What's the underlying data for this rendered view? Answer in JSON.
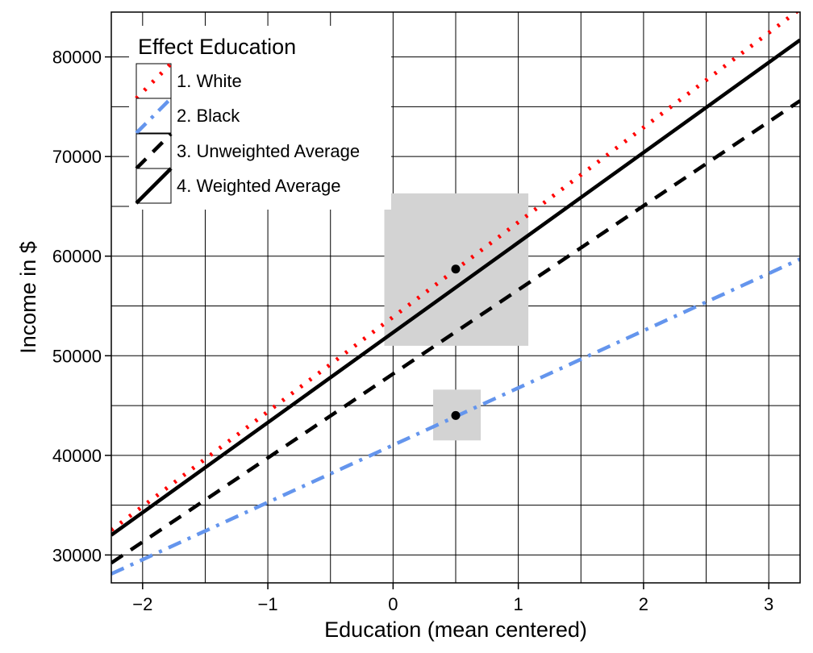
{
  "chart_data": {
    "type": "line",
    "xlabel": "Education (mean centered)",
    "ylabel": "Income in $",
    "xlim": [
      -2.25,
      3.25
    ],
    "ylim": [
      27200,
      84500
    ],
    "x_ticks": [
      -2,
      -1,
      0,
      1,
      2,
      3
    ],
    "x_tick_labels": [
      "−2",
      "−1",
      "0",
      "1",
      "2",
      "3"
    ],
    "y_ticks": [
      30000,
      40000,
      50000,
      60000,
      70000,
      80000
    ],
    "y_tick_labels": [
      "30000",
      "40000",
      "50000",
      "60000",
      "70000",
      "80000"
    ],
    "grid": {
      "x_minor": true,
      "y_minor": true
    },
    "legend": {
      "title": "Effect Education",
      "position": "top-left",
      "entries": [
        "1. White",
        "2. Black",
        "3. Unweighted Average",
        "4. Weighted Average"
      ]
    },
    "series": [
      {
        "name": "1. White",
        "style": "dotted",
        "color": "#ff0000",
        "x": [
          -2.25,
          3.25
        ],
        "y": [
          32500,
          84800
        ]
      },
      {
        "name": "2. Black",
        "style": "dashdot",
        "color": "#6495ed",
        "x": [
          -2.25,
          3.25
        ],
        "y": [
          28100,
          59700
        ]
      },
      {
        "name": "3. Unweighted Average",
        "style": "dashed",
        "color": "#000000",
        "x": [
          -2.25,
          3.25
        ],
        "y": [
          29200,
          75600
        ]
      },
      {
        "name": "4. Weighted Average",
        "style": "solid",
        "color": "#000000",
        "x": [
          -2.25,
          3.25
        ],
        "y": [
          32000,
          81700
        ]
      }
    ],
    "points": [
      {
        "x": 0.5,
        "y": 58700,
        "box_x": [
          -0.07,
          1.08
        ],
        "box_y": [
          51000,
          66300
        ]
      },
      {
        "x": 0.5,
        "y": 44000,
        "box_x": [
          0.32,
          0.7
        ],
        "box_y": [
          41500,
          46600
        ]
      }
    ],
    "colors": {
      "box": "#d3d3d3",
      "grid": "#000000",
      "background": "#ffffff"
    }
  }
}
